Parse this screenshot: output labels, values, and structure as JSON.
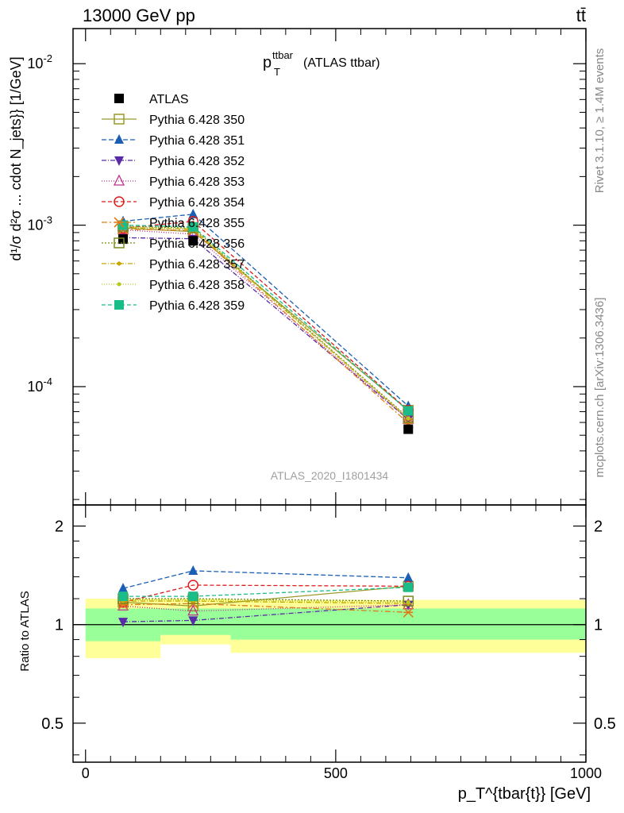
{
  "header": {
    "energy_label": "13000 GeV pp",
    "process_label": "tt̄"
  },
  "side_labels": {
    "rivet": "Rivet 3.1.10, ≥ 1.4M events",
    "mcplots": "mcplots.cern.ch [arXiv:1306.3436]"
  },
  "plot": {
    "title_main": "p",
    "title_sup": "ttbar",
    "title_sub": "T",
    "title_rest": "(ATLAS ttbar)",
    "watermark": "ATLAS_2020_I1801434",
    "ylabel": "d¹/σ d²σ ... cdot N_jets}} [1/GeV]",
    "ratio_ylabel": "Ratio to ATLAS",
    "xlabel": "p_T^{tbar{t}} [GeV]"
  },
  "chart_data": {
    "type": "line",
    "x": [
      75,
      215,
      645
    ],
    "x_edges": [
      0,
      150,
      290,
      1000
    ],
    "xlim": [
      -25,
      1000
    ],
    "ylim": [
      1.85e-05,
      0.0165
    ],
    "yscale": "log",
    "ratio_ylim": [
      0.38,
      2.32
    ],
    "x_ticks": [
      "0",
      "500",
      "1000"
    ],
    "y_ticks": [
      "10^{-2}",
      "10^{-3}",
      "10^{-4}"
    ],
    "ratio_ticks": [
      "0.5",
      "1",
      "2"
    ],
    "data": {
      "name": "ATLAS",
      "values": [
        0.00082,
        0.0008,
        5.45e-05
      ],
      "color": "#000000"
    },
    "series": [
      {
        "name": "Pythia 6.428 350",
        "color": "#9a9a2a",
        "marker": "square-open",
        "dash": "",
        "ratio": [
          1.17,
          1.14,
          1.31
        ]
      },
      {
        "name": "Pythia 6.428 351",
        "color": "#1a5fb4",
        "marker": "triangle-up",
        "dash": "6,3",
        "ratio": [
          1.29,
          1.46,
          1.39
        ]
      },
      {
        "name": "Pythia 6.428 352",
        "color": "#5a2aa8",
        "marker": "triangle-down",
        "dash": "6,2,1,2",
        "ratio": [
          1.02,
          1.03,
          1.15
        ]
      },
      {
        "name": "Pythia 6.428 353",
        "color": "#c0308a",
        "marker": "triangle-open",
        "dash": "1,2",
        "ratio": [
          1.14,
          1.1,
          1.15
        ]
      },
      {
        "name": "Pythia 6.428 354",
        "color": "#dd1c1c",
        "marker": "circle-open",
        "dash": "5,3",
        "ratio": [
          1.17,
          1.32,
          1.31
        ]
      },
      {
        "name": "Pythia 6.428 355",
        "color": "#e07b1a",
        "marker": "star",
        "dash": "7,3,2,3",
        "ratio": [
          1.15,
          1.16,
          1.09
        ]
      },
      {
        "name": "Pythia 6.428 356",
        "color": "#7a8a1a",
        "marker": "square-open",
        "dash": "2,2",
        "ratio": [
          1.2,
          1.2,
          1.18
        ]
      },
      {
        "name": "Pythia 6.428 357",
        "color": "#c8a800",
        "marker": "diamond-small",
        "dash": "6,2,1,2",
        "ratio": [
          1.18,
          1.18,
          1.16
        ]
      },
      {
        "name": "Pythia 6.428 358",
        "color": "#b4c81a",
        "marker": "dot",
        "dash": "1,2",
        "ratio": [
          1.19,
          1.19,
          1.17
        ]
      },
      {
        "name": "Pythia 6.428 359",
        "color": "#1abc8a",
        "marker": "square",
        "dash": "5,3",
        "ratio": [
          1.22,
          1.22,
          1.3
        ]
      }
    ],
    "bands": {
      "inner_color": "#99ff99",
      "outer_color": "#ffff99",
      "inner": [
        [
          0.89,
          1.12
        ],
        [
          0.93,
          1.12
        ],
        [
          0.9,
          1.12
        ]
      ],
      "outer": [
        [
          0.79,
          1.2
        ],
        [
          0.87,
          1.2
        ],
        [
          0.82,
          1.19
        ]
      ]
    }
  }
}
